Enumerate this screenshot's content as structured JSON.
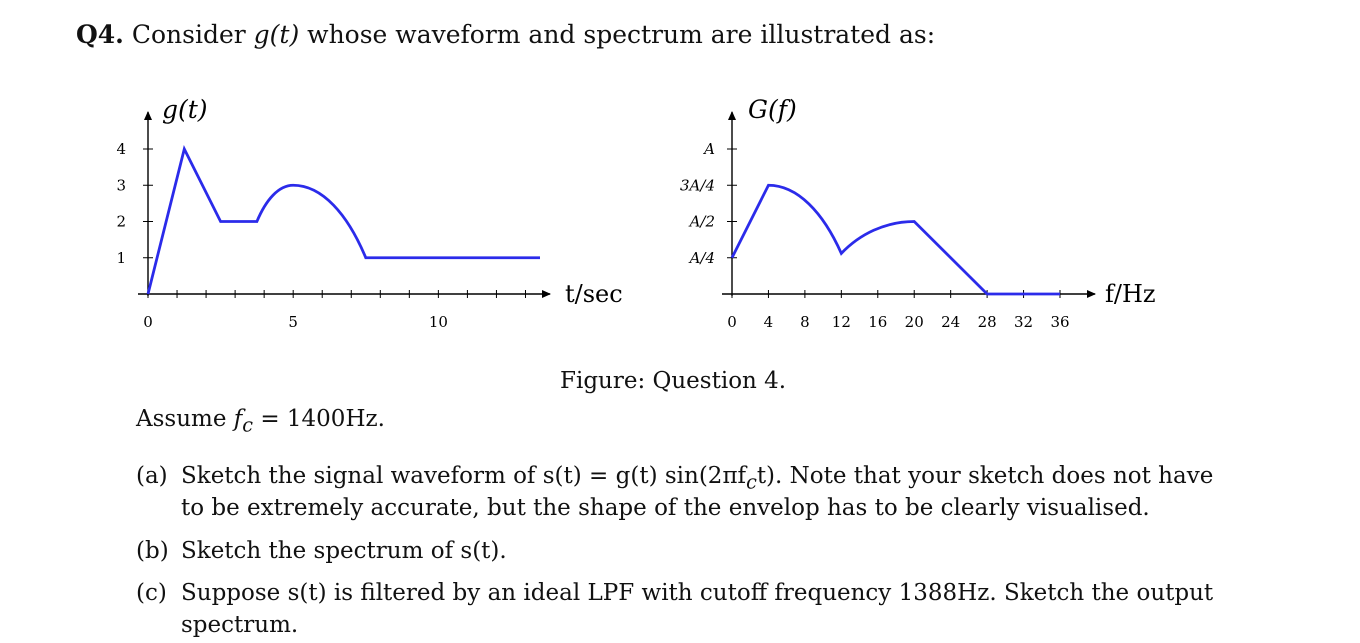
{
  "question": {
    "number": "Q4.",
    "intro_prefix": "Consider",
    "g_symbol": "g(t)",
    "intro_suffix": "whose waveform and spectrum are illustrated as:"
  },
  "chart_data": [
    {
      "type": "line",
      "ylabel": "g(t)",
      "xlabel": "t/sec",
      "x_ticks": [
        0,
        5,
        10
      ],
      "y_ticks": [
        1,
        2,
        3,
        4
      ],
      "x": [
        0,
        1.25,
        2.5,
        3.75,
        5,
        7.5,
        13.5
      ],
      "y": [
        0,
        4,
        2,
        2,
        3,
        1,
        1
      ],
      "segment_shapes": [
        "linear",
        "linear",
        "linear",
        "curved",
        "curved",
        "linear"
      ],
      "xlim": [
        0,
        13.5
      ],
      "ylim": [
        0,
        4
      ]
    },
    {
      "type": "line",
      "ylabel": "G(f)",
      "xlabel": "f/Hz",
      "x_ticks": [
        0,
        4,
        8,
        12,
        16,
        20,
        24,
        28,
        32,
        36
      ],
      "y_tick_labels": [
        "A/4",
        "A/2",
        "3A/4",
        "A"
      ],
      "y_ticks": [
        0.25,
        0.5,
        0.75,
        1
      ],
      "x": [
        0,
        4,
        12,
        20,
        28,
        36
      ],
      "y": [
        0.25,
        0.75,
        0.28,
        0.5,
        0,
        0
      ],
      "segment_shapes": [
        "linear",
        "curved",
        "curved",
        "linear",
        "linear"
      ],
      "xlim": [
        0,
        36
      ],
      "ylim": [
        0,
        1
      ]
    }
  ],
  "figure_caption": "Figure: Question 4.",
  "assume": {
    "prefix": "Assume",
    "fc": "f",
    "fc_sub": "c",
    "eq": "= 1400Hz."
  },
  "parts": [
    {
      "label": "(a)",
      "line1": "Sketch the signal waveform of s(t) = g(t) sin(2πf",
      "line1_sub": "c",
      "line1_end": "t). Note that your sketch does not have",
      "line2": "to be extremely accurate, but the shape of the envelop has to be clearly visualised."
    },
    {
      "label": "(b)",
      "line1": "Sketch the spectrum of s(t)."
    },
    {
      "label": "(c)",
      "line1": "Suppose s(t) is filtered by an ideal LPF with cutoff frequency 1388Hz. Sketch the output",
      "line2": "spectrum."
    }
  ]
}
